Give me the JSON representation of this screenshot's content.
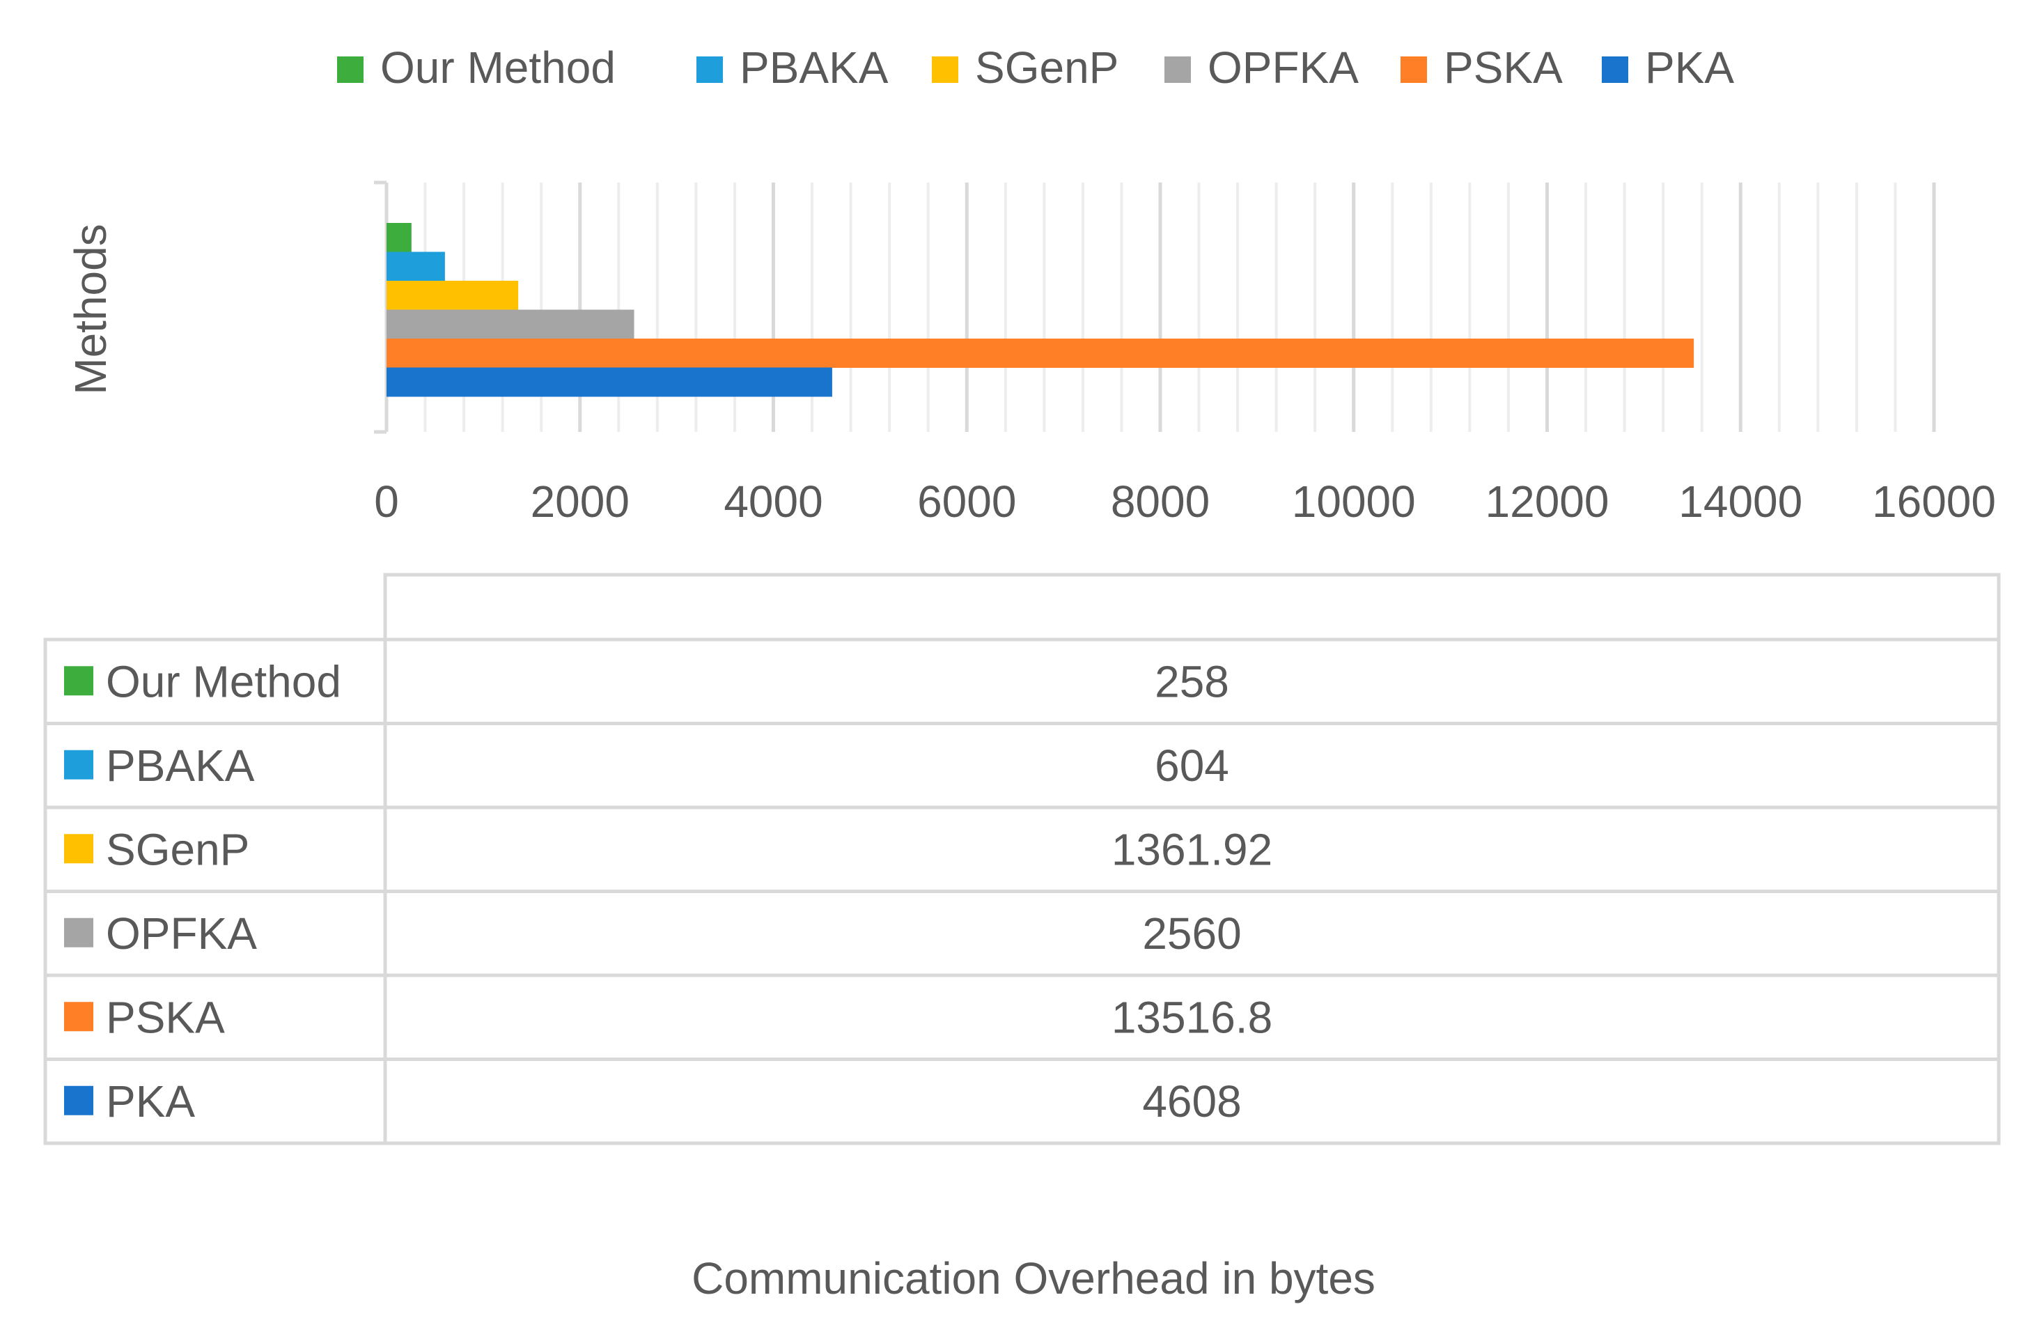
{
  "chart_data": {
    "type": "bar",
    "orientation": "horizontal",
    "title": "",
    "xlabel": "Communication Overhead in bytes",
    "ylabel": "Methods",
    "xlim": [
      0,
      16000
    ],
    "x_ticks": [
      0,
      2000,
      4000,
      6000,
      8000,
      10000,
      12000,
      14000,
      16000
    ],
    "x_minor_step": 400,
    "grid": true,
    "legend_position": "top",
    "series": [
      {
        "name": "Our Method",
        "value": 258,
        "label": "258",
        "color": "#3DAE3E"
      },
      {
        "name": "PBAKA",
        "value": 604,
        "label": "604",
        "color": "#1E9FDB"
      },
      {
        "name": "SGenP",
        "value": 1361.92,
        "label": "1361.92",
        "color": "#FFC000"
      },
      {
        "name": "OPFKA",
        "value": 2560,
        "label": "2560",
        "color": "#A5A5A5"
      },
      {
        "name": "PSKA",
        "value": 13516.8,
        "label": "13516.8",
        "color": "#FF7F27"
      },
      {
        "name": "PKA",
        "value": 4608,
        "label": "4608",
        "color": "#1874CD"
      }
    ],
    "data_table": {
      "header": "",
      "show_legend_keys": true
    }
  }
}
